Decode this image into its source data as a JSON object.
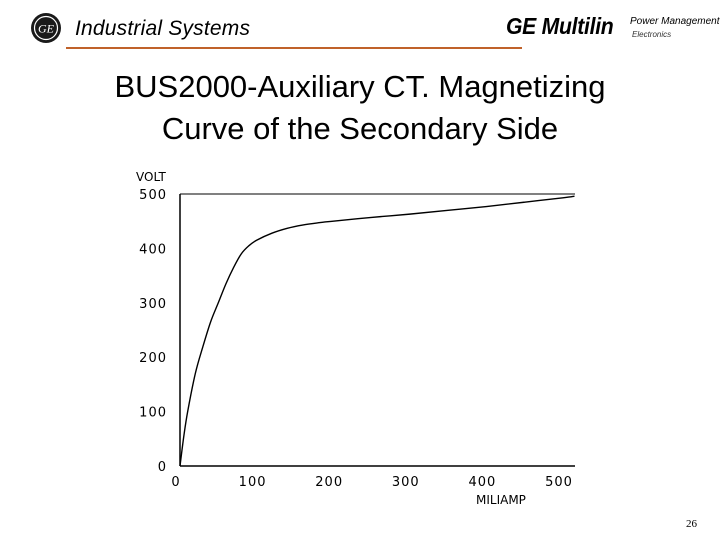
{
  "header": {
    "brand_text": "Industrial Systems",
    "company_logo_text": "GE Multilin",
    "division_line1": "Power Management",
    "division_line2": "Electronics",
    "rule_color": "#c0622a"
  },
  "slide": {
    "title_line1": "BUS2000-Auxiliary CT. Magnetizing",
    "title_line2": "Curve of the Secondary Side",
    "page_number": "26"
  },
  "chart_data": {
    "type": "line",
    "title": "",
    "xlabel": "MILIAMP",
    "ylabel": "VOLT",
    "xlim": [
      0,
      500
    ],
    "ylim": [
      0,
      500
    ],
    "xticks": [
      "0",
      "100",
      "200",
      "300",
      "400",
      "500"
    ],
    "yticks": [
      "0",
      "100",
      "200",
      "300",
      "400",
      "500"
    ],
    "grid": false,
    "series": [
      {
        "x": [
          0,
          5,
          10,
          20,
          30,
          40,
          50,
          60,
          70,
          80,
          90,
          100,
          120,
          140,
          160,
          180,
          200,
          250,
          300,
          350,
          400,
          450,
          500,
          515
        ],
        "y": [
          0,
          55,
          100,
          170,
          220,
          265,
          300,
          335,
          365,
          390,
          405,
          415,
          428,
          437,
          443,
          447,
          450,
          457,
          463,
          470,
          477,
          485,
          493,
          496
        ]
      }
    ],
    "line_color": "#000000"
  }
}
